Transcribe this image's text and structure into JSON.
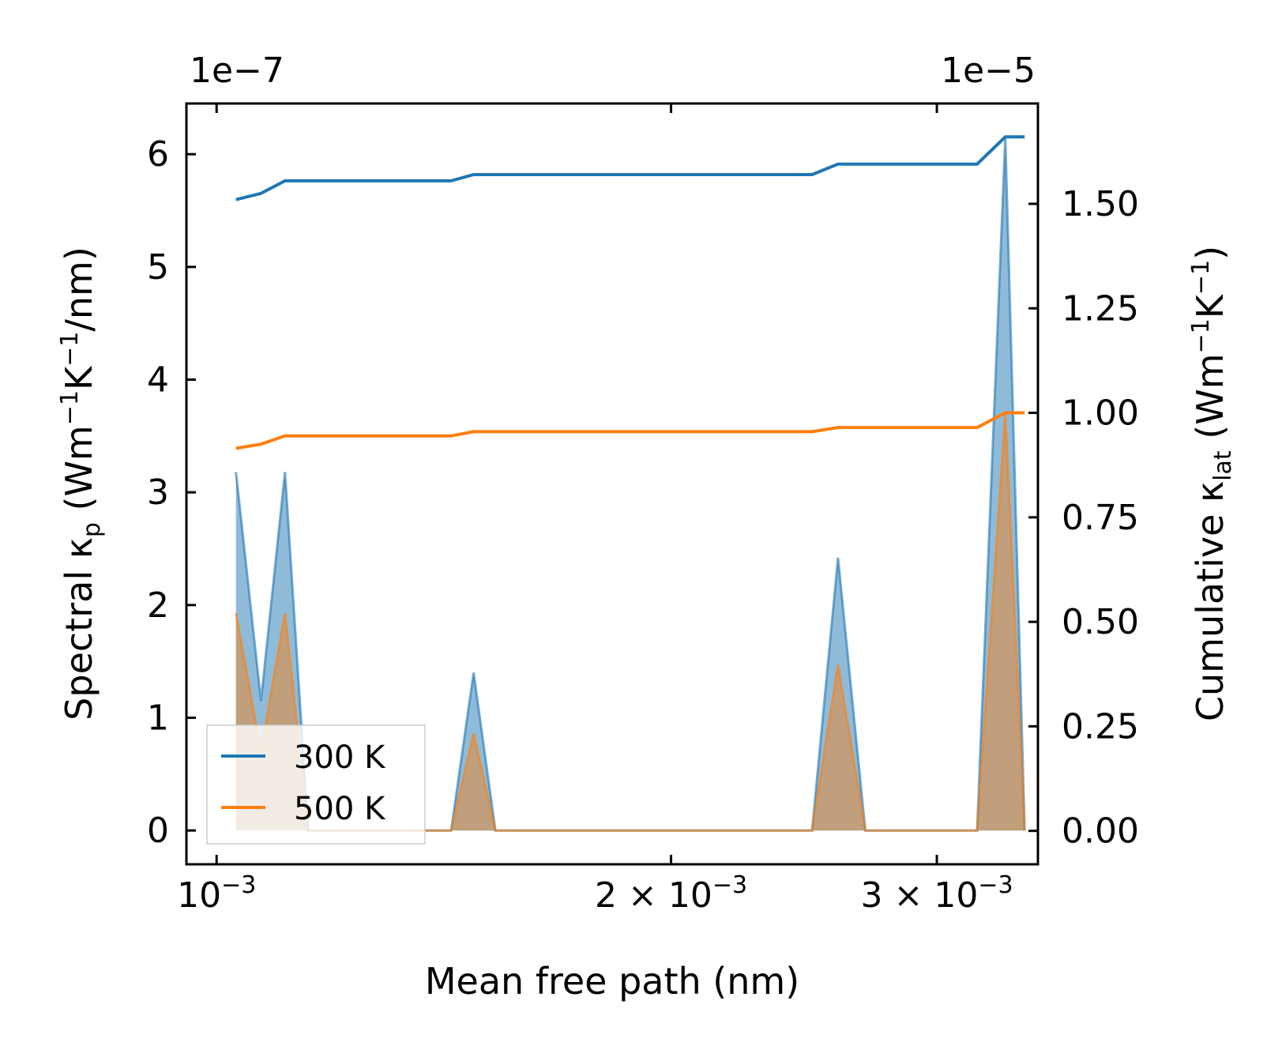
{
  "chart_data": {
    "type": "line",
    "xlabel": "Mean free path (nm)",
    "ylabel_left": "Spectral κ",
    "ylabel_left_sub": "p",
    "ylabel_left_units": " (Wm",
    "ylabel_left_units_sup1": "−1",
    "ylabel_left_units_mid": "K",
    "ylabel_left_units_sup2": "−1",
    "ylabel_left_units_end": "/nm)",
    "ylabel_right": "Cumulative κ",
    "ylabel_right_sub": "lat",
    "ylabel_right_units": " (Wm",
    "ylabel_right_units_sup1": "−1",
    "ylabel_right_units_mid": "K",
    "ylabel_right_units_sup2": "−1",
    "ylabel_right_units_end": ")",
    "offset_left_x": "1e−7",
    "offset_right_x": "1e−5",
    "x_scale": "log",
    "xlim": [
      0.000955,
      0.0035
    ],
    "x_ticks": [
      {
        "value": 0.001,
        "base": "10",
        "exp": "−3"
      },
      {
        "value": 0.002,
        "base": "2 × 10",
        "exp": "−3"
      },
      {
        "value": 0.003,
        "base": "3 × 10",
        "exp": "−3"
      }
    ],
    "ylim_left": [
      -0.3,
      6.45
    ],
    "yticks_left": [
      "0",
      "1",
      "2",
      "3",
      "4",
      "5",
      "6"
    ],
    "ylim_right": [
      -0.08,
      1.74
    ],
    "yticks_right": [
      "0.00",
      "0.25",
      "0.50",
      "0.75",
      "1.00",
      "1.25",
      "1.50"
    ],
    "x": [
      0.00103,
      0.00107,
      0.00111,
      0.00115,
      0.00121,
      0.00126,
      0.00132,
      0.00137,
      0.00143,
      0.00148,
      0.00153,
      0.00159,
      0.00167,
      0.00176,
      0.00186,
      0.00196,
      0.00206,
      0.00216,
      0.00226,
      0.00237,
      0.00248,
      0.00258,
      0.00269,
      0.00281,
      0.00293,
      0.00306,
      0.00319,
      0.00333,
      0.00343
    ],
    "series": [
      {
        "name": "300 K",
        "color": "#1f77b4",
        "fill": "#1f77b4",
        "spectral": [
          3.18,
          1.15,
          3.18,
          0,
          0,
          0,
          0,
          0,
          0,
          1.4,
          0,
          0,
          0,
          0,
          0,
          0,
          0,
          0,
          0,
          0,
          0,
          2.42,
          0,
          0,
          0,
          0,
          0,
          6.15,
          0
        ],
        "cumulative": [
          1.51,
          1.525,
          1.555,
          1.555,
          1.555,
          1.555,
          1.555,
          1.555,
          1.555,
          1.57,
          1.57,
          1.57,
          1.57,
          1.57,
          1.57,
          1.57,
          1.57,
          1.57,
          1.57,
          1.57,
          1.57,
          1.595,
          1.595,
          1.595,
          1.595,
          1.595,
          1.595,
          1.66,
          1.66
        ]
      },
      {
        "name": "500 K",
        "color": "#ff7f0e",
        "fill": "#ff7f0e",
        "spectral": [
          1.93,
          0.7,
          1.93,
          0,
          0,
          0,
          0,
          0,
          0,
          0.86,
          0,
          0,
          0,
          0,
          0,
          0,
          0,
          0,
          0,
          0,
          0,
          1.47,
          0,
          0,
          0,
          0,
          0,
          3.7,
          0
        ],
        "cumulative": [
          0.915,
          0.925,
          0.945,
          0.945,
          0.945,
          0.945,
          0.945,
          0.945,
          0.945,
          0.955,
          0.955,
          0.955,
          0.955,
          0.955,
          0.955,
          0.955,
          0.955,
          0.955,
          0.955,
          0.955,
          0.955,
          0.965,
          0.965,
          0.965,
          0.965,
          0.965,
          0.965,
          1.0,
          1.0
        ]
      }
    ],
    "legend": {
      "location": "lower-left",
      "entries": [
        "300 K",
        "500 K"
      ]
    }
  }
}
